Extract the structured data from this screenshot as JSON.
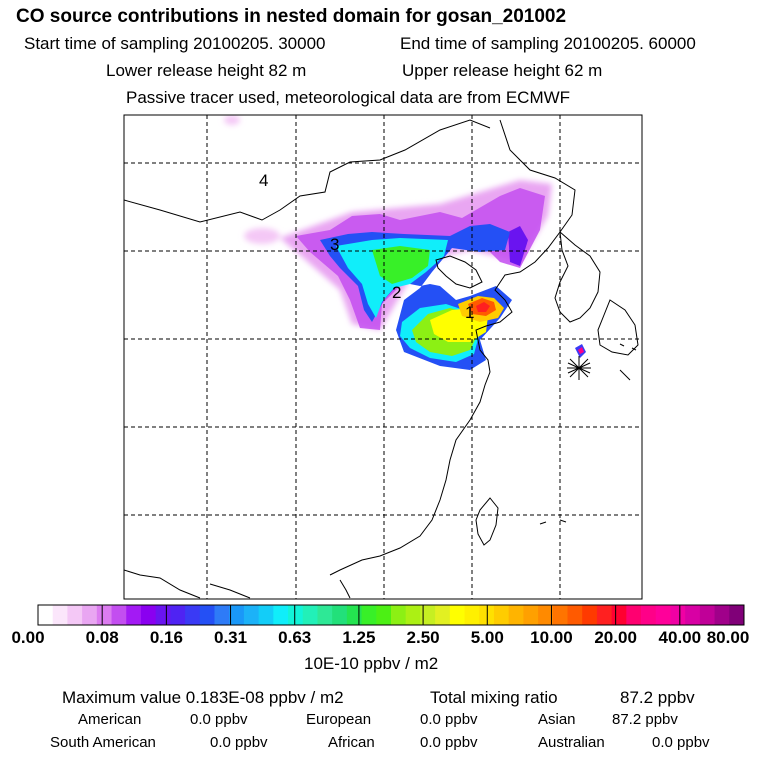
{
  "header": {
    "title": "CO  source contributions in nested domain for gosan_201002",
    "start_label": "Start time of sampling 20100205. 30000",
    "end_label": "End time of sampling 20100205. 60000",
    "lower_label": "Lower release height   82 m",
    "upper_label": "Upper release height   62 m",
    "tracer_label": "Passive tracer used, meteorological data are from ECMWF"
  },
  "chart_data": {
    "type": "heatmap",
    "title": "CO  source contributions in nested domain for gosan_201002",
    "colorbar_unit": "10E-10 ppbv / m2",
    "colorbar_ticks": [
      "0.00",
      "0.08",
      "0.16",
      "0.31",
      "0.63",
      "1.25",
      "2.50",
      "5.00",
      "10.00",
      "20.00",
      "40.00",
      "80.00"
    ],
    "colorbar_colors": [
      "#ffffff",
      "#fbe6fb",
      "#f4c8f6",
      "#e9a6f2",
      "#dc7cf0",
      "#c34ef0",
      "#a31af4",
      "#8a00f0",
      "#6a14f0",
      "#4f23f3",
      "#3a3af5",
      "#2450f5",
      "#2e7bf7",
      "#1a98f8",
      "#1cb2f8",
      "#13cdf8",
      "#10eefa",
      "#12f4d8",
      "#22f0b8",
      "#2ee896",
      "#22e07a",
      "#24e450",
      "#38f028",
      "#4cf014",
      "#8cf014",
      "#acf014",
      "#c6ef22",
      "#e2f022",
      "#ffff00",
      "#fff000",
      "#ffe000",
      "#ffcc00",
      "#ffb400",
      "#ffa000",
      "#ff8a00",
      "#ff7400",
      "#ff5a00",
      "#ff3a00",
      "#ff2020",
      "#ff0030",
      "#ff0070",
      "#ff0088",
      "#ff009a",
      "#f000a4",
      "#d800a4",
      "#c00098",
      "#a0008a",
      "#800078"
    ],
    "source_labels": [
      "1",
      "2",
      "3",
      "4"
    ],
    "receptor": "Gosan"
  },
  "footer": {
    "max_label": "Maximum value  0.183E-08 ppbv / m2",
    "total_label": "Total mixing ratio",
    "total_value": "87.2 ppbv",
    "regions": [
      {
        "name": "American",
        "value": "0.0 ppbv"
      },
      {
        "name": "European",
        "value": "0.0 ppbv"
      },
      {
        "name": "Asian",
        "value": "87.2 ppbv"
      },
      {
        "name": "South American",
        "value": "0.0 ppbv"
      },
      {
        "name": "African",
        "value": "0.0 ppbv"
      },
      {
        "name": "Australian",
        "value": "0.0 ppbv"
      }
    ]
  }
}
